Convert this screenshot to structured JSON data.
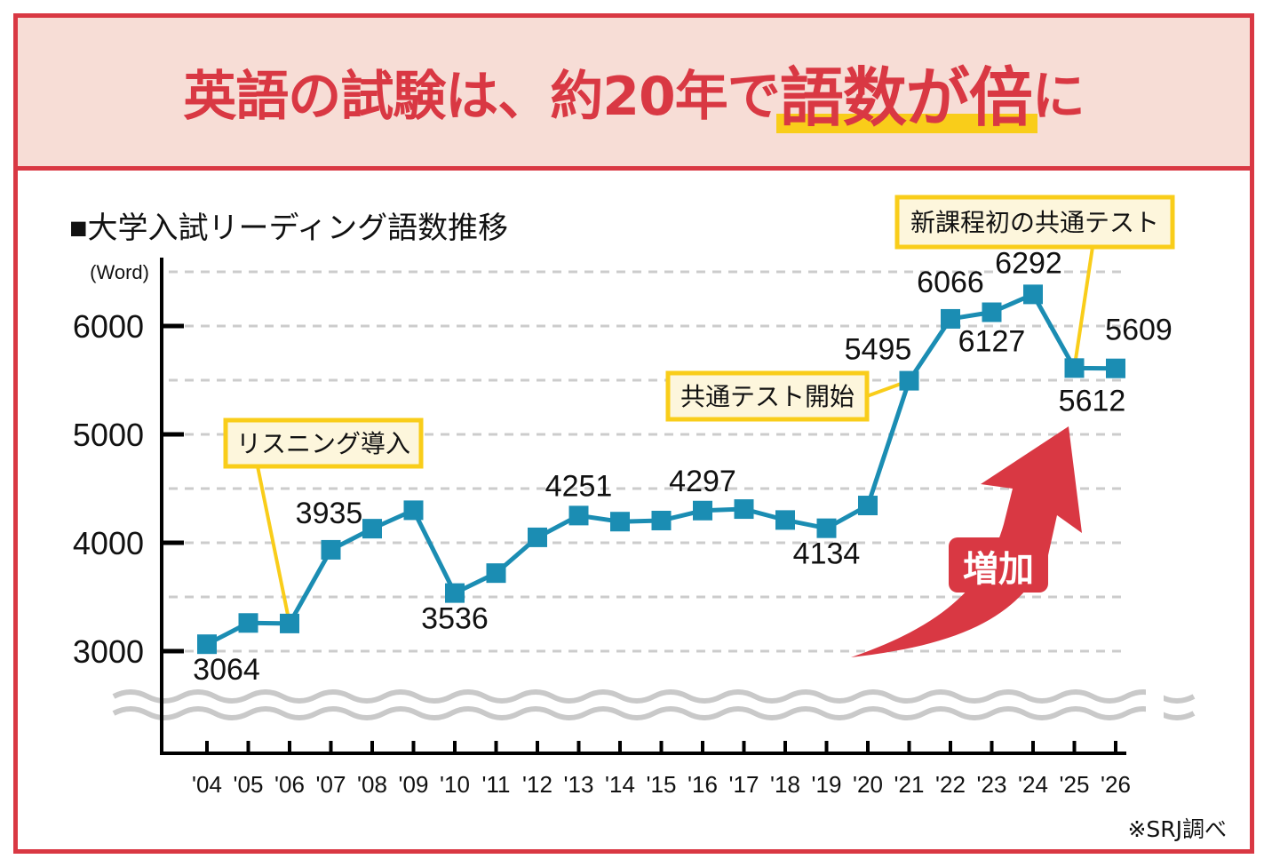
{
  "header": {
    "title_prefix": "英語の試験は、約20年で",
    "title_highlight": "語数が倍",
    "title_suffix": "に"
  },
  "source_note": "※SRJ調べ",
  "colors": {
    "frame": "#d93843",
    "title_bg": "#f7ddd6",
    "highlight": "#f9cd1a",
    "line": "#1b8db3",
    "callout_border": "#f9cd1a",
    "callout_bg": "#fdf6dc",
    "arrow": "#d93843",
    "grid": "#cccccc"
  },
  "chart_data": {
    "type": "line",
    "title": "■大学入試リーディング語数推移",
    "ylabel": "(Word)",
    "xlabel": "",
    "ylim": [
      2500,
      6500
    ],
    "yticks": [
      3000,
      4000,
      5000,
      6000
    ],
    "ytick_labels": [
      "3000",
      "4000",
      "5000",
      "6000"
    ],
    "grid": true,
    "grid_step": 500,
    "axis_break": true,
    "categories": [
      "'04",
      "'05",
      "'06",
      "'07",
      "'08",
      "'09",
      "'10",
      "'11",
      "'12",
      "'13",
      "'14",
      "'15",
      "'16",
      "'17",
      "'18",
      "'19",
      "'20",
      "'21",
      "'22",
      "'23",
      "'24",
      "'25",
      "'26"
    ],
    "series": [
      {
        "name": "リーディング語数",
        "values": [
          3064,
          3260,
          3255,
          3935,
          4130,
          4300,
          3536,
          3720,
          4050,
          4251,
          4195,
          4205,
          4297,
          4311,
          4210,
          4134,
          4344,
          5495,
          6066,
          6127,
          6292,
          5612,
          5609
        ]
      }
    ],
    "data_labels": [
      {
        "index": 0,
        "text": "3064",
        "pos": "below"
      },
      {
        "index": 3,
        "text": "3935",
        "pos": "above"
      },
      {
        "index": 6,
        "text": "3536",
        "pos": "below"
      },
      {
        "index": 9,
        "text": "4251",
        "pos": "above"
      },
      {
        "index": 12,
        "text": "4297",
        "pos": "above"
      },
      {
        "index": 15,
        "text": "4134",
        "pos": "below"
      },
      {
        "index": 17,
        "text": "5495",
        "pos": "above-left"
      },
      {
        "index": 18,
        "text": "6066",
        "pos": "above"
      },
      {
        "index": 19,
        "text": "6127",
        "pos": "below"
      },
      {
        "index": 20,
        "text": "6292",
        "pos": "above"
      },
      {
        "index": 21,
        "text": "5612",
        "pos": "below"
      },
      {
        "index": 22,
        "text": "5609",
        "pos": "above"
      }
    ],
    "annotations": [
      {
        "text": "リスニング導入",
        "index": 2
      },
      {
        "text": "共通テスト開始",
        "index": 17
      },
      {
        "text": "新課程初の共通テスト",
        "index": 21
      }
    ],
    "arrow_label": "増加"
  }
}
